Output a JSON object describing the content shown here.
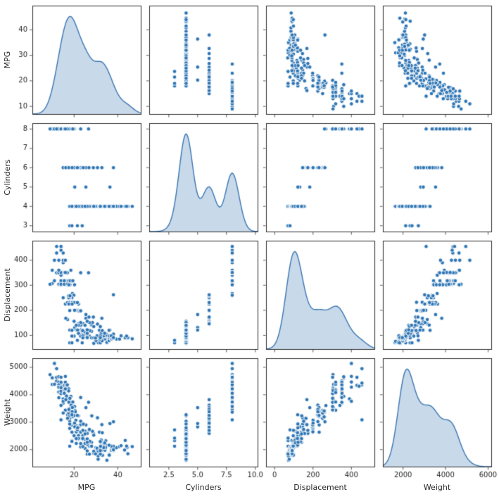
{
  "colors": {
    "bg": "#ffffff",
    "dot": "#2f76b5",
    "dot_edge": "#ffffff",
    "kde_line": "#3a76b2",
    "kde_fill": "rgba(58,118,178,0.28)",
    "spine": "#2b2b2b",
    "text": "#262626"
  },
  "chart_data": {
    "type": "scatter",
    "subtype": "pairplot-matrix",
    "title": "",
    "diagonal": "kde",
    "grid": false,
    "legend": "none",
    "variables": [
      {
        "name": "MPG",
        "row_lim": [
          7,
          49.5
        ],
        "row_ticks": [
          10,
          20,
          30,
          40
        ],
        "col_lim": [
          0.9,
          50.5
        ],
        "col_ticks": [
          20,
          40
        ],
        "col_tick_labels": [
          "20",
          "40"
        ]
      },
      {
        "name": "Cylinders",
        "row_lim": [
          2.7,
          8.3
        ],
        "row_ticks": [
          3,
          4,
          5,
          6,
          7,
          8
        ],
        "col_lim": [
          0.8,
          10.2
        ],
        "col_ticks": [
          2.5,
          5.0,
          7.5,
          10.0
        ],
        "col_tick_labels": [
          "2.5",
          "5.0",
          "7.5",
          "10.0"
        ]
      },
      {
        "name": "Displacement",
        "row_lim": [
          45,
          478
        ],
        "row_ticks": [
          100,
          200,
          300,
          400
        ],
        "col_lim": [
          -45,
          520
        ],
        "col_ticks": [
          0,
          200,
          400
        ],
        "col_tick_labels": [
          "0",
          "200",
          "400"
        ]
      },
      {
        "name": "Weight",
        "row_lim": [
          1380,
          5330
        ],
        "row_ticks": [
          2000,
          3000,
          4000,
          5000
        ],
        "col_lim": [
          1050,
          6150
        ],
        "col_ticks": [
          2000,
          4000,
          6000
        ],
        "col_tick_labels": [
          "2000",
          "4000",
          "6000"
        ]
      }
    ],
    "point_fields": [
      "MPG",
      "Cylinders",
      "Displacement",
      "Weight"
    ],
    "points": [
      [
        18,
        8,
        307,
        3504
      ],
      [
        15,
        8,
        350,
        3693
      ],
      [
        18,
        8,
        318,
        3436
      ],
      [
        16,
        8,
        304,
        3433
      ],
      [
        17,
        8,
        302,
        3449
      ],
      [
        15,
        8,
        429,
        4341
      ],
      [
        14,
        8,
        454,
        4354
      ],
      [
        14,
        8,
        440,
        4312
      ],
      [
        14,
        8,
        455,
        4425
      ],
      [
        15,
        8,
        390,
        3850
      ],
      [
        14,
        8,
        340,
        3609
      ],
      [
        15,
        8,
        400,
        3761
      ],
      [
        14,
        8,
        455,
        3086
      ],
      [
        10,
        8,
        360,
        4615
      ],
      [
        10,
        8,
        307,
        4376
      ],
      [
        11,
        8,
        318,
        4382
      ],
      [
        9,
        8,
        304,
        4732
      ],
      [
        13,
        8,
        350,
        4100
      ],
      [
        12,
        8,
        350,
        4499
      ],
      [
        13,
        8,
        400,
        4464
      ],
      [
        13,
        8,
        351,
        4363
      ],
      [
        14,
        8,
        318,
        4077
      ],
      [
        13,
        8,
        304,
        3892
      ],
      [
        14,
        8,
        302,
        4042
      ],
      [
        15,
        8,
        318,
        4096
      ],
      [
        12,
        8,
        429,
        4633
      ],
      [
        13,
        8,
        400,
        4278
      ],
      [
        13,
        8,
        350,
        4274
      ],
      [
        14,
        8,
        351,
        4129
      ],
      [
        16,
        8,
        400,
        4668
      ],
      [
        13,
        8,
        360,
        4654
      ],
      [
        14,
        8,
        318,
        4457
      ],
      [
        14,
        8,
        302,
        4638
      ],
      [
        14,
        8,
        304,
        4257
      ],
      [
        17.5,
        8,
        305,
        4215
      ],
      [
        16,
        8,
        318,
        4190
      ],
      [
        15.5,
        8,
        304,
        4154
      ],
      [
        15.5,
        8,
        350,
        4165
      ],
      [
        16,
        8,
        350,
        4456
      ],
      [
        16.5,
        8,
        351,
        4335
      ],
      [
        17.5,
        8,
        318,
        4140
      ],
      [
        17,
        8,
        305,
        3840
      ],
      [
        15.5,
        8,
        318,
        4080
      ],
      [
        16.5,
        8,
        350,
        3955
      ],
      [
        18.5,
        8,
        360,
        3940
      ],
      [
        26.6,
        8,
        350,
        3725
      ],
      [
        18.1,
        8,
        302,
        3870
      ],
      [
        19.2,
        8,
        267,
        3605
      ],
      [
        20.2,
        8,
        302,
        3570
      ],
      [
        19.9,
        8,
        260,
        3365
      ],
      [
        18.2,
        8,
        318,
        3735
      ],
      [
        17.6,
        8,
        302,
        3725
      ],
      [
        16.9,
        8,
        350,
        4360
      ],
      [
        15.5,
        8,
        351,
        4054
      ],
      [
        19.4,
        8,
        318,
        3735
      ],
      [
        23,
        8,
        350,
        3900
      ],
      [
        16,
        8,
        351,
        4215
      ],
      [
        11,
        8,
        400,
        5140
      ],
      [
        12,
        8,
        455,
        4951
      ],
      [
        18,
        6,
        199,
        2774
      ],
      [
        22,
        6,
        198,
        2833
      ],
      [
        21,
        6,
        200,
        2875
      ],
      [
        19,
        6,
        232,
        2634
      ],
      [
        16,
        6,
        225,
        3439
      ],
      [
        17,
        6,
        231,
        3264
      ],
      [
        21,
        6,
        199,
        2648
      ],
      [
        18,
        6,
        232,
        3288
      ],
      [
        19,
        6,
        250,
        3302
      ],
      [
        18,
        6,
        250,
        3139
      ],
      [
        23,
        6,
        198,
        2904
      ],
      [
        19,
        6,
        232,
        2901
      ],
      [
        18,
        6,
        225,
        3021
      ],
      [
        20,
        6,
        156,
        2945
      ],
      [
        15,
        6,
        250,
        3336
      ],
      [
        18,
        6,
        250,
        3432
      ],
      [
        18,
        6,
        258,
        3410
      ],
      [
        17.5,
        6,
        250,
        3329
      ],
      [
        22,
        6,
        225,
        3233
      ],
      [
        19,
        6,
        225,
        3264
      ],
      [
        20.5,
        6,
        231,
        3425
      ],
      [
        17.5,
        6,
        258,
        3193
      ],
      [
        20.2,
        6,
        232,
        3265
      ],
      [
        19.4,
        6,
        232,
        3210
      ],
      [
        20.6,
        6,
        231,
        3380
      ],
      [
        20.8,
        6,
        200,
        3070
      ],
      [
        18.6,
        6,
        225,
        3620
      ],
      [
        18.1,
        6,
        258,
        3410
      ],
      [
        19.2,
        6,
        231,
        3535
      ],
      [
        30.7,
        6,
        145,
        3160
      ],
      [
        25.4,
        6,
        168,
        2900
      ],
      [
        24.2,
        6,
        146,
        2930
      ],
      [
        38,
        6,
        262,
        3015
      ],
      [
        17,
        6,
        163,
        3140
      ],
      [
        16.2,
        6,
        168,
        3820
      ],
      [
        32.7,
        6,
        168,
        2910
      ],
      [
        22,
        6,
        146,
        2815
      ],
      [
        28.8,
        6,
        173,
        2595
      ],
      [
        26.8,
        6,
        173,
        2700
      ],
      [
        20.2,
        6,
        200,
        2965
      ],
      [
        17.6,
        6,
        225,
        3465
      ],
      [
        20.2,
        6,
        231,
        3245
      ],
      [
        19.1,
        6,
        225,
        3381
      ],
      [
        21.5,
        6,
        231,
        3245
      ],
      [
        18,
        3,
        70,
        2124
      ],
      [
        19,
        3,
        70,
        2330
      ],
      [
        23.7,
        3,
        70,
        2420
      ],
      [
        21.5,
        3,
        80,
        2720
      ],
      [
        20.3,
        5,
        131,
        2830
      ],
      [
        25.4,
        5,
        183,
        3530
      ],
      [
        36.4,
        5,
        121,
        2950
      ],
      [
        24,
        4,
        113,
        2372
      ],
      [
        27,
        4,
        97,
        2130
      ],
      [
        26,
        4,
        97,
        1835
      ],
      [
        25,
        4,
        110,
        2672
      ],
      [
        24,
        4,
        107,
        2430
      ],
      [
        25,
        4,
        104,
        2375
      ],
      [
        26,
        4,
        121,
        2234
      ],
      [
        28,
        4,
        140,
        2264
      ],
      [
        25,
        4,
        98,
        2046
      ],
      [
        27,
        4,
        97,
        1834
      ],
      [
        35,
        4,
        72,
        1613
      ],
      [
        31,
        4,
        76,
        1649
      ],
      [
        36,
        4,
        79,
        1825
      ],
      [
        33,
        4,
        91,
        1795
      ],
      [
        32,
        4,
        83,
        2003
      ],
      [
        28,
        4,
        90,
        2125
      ],
      [
        31,
        4,
        79,
        1950
      ],
      [
        29,
        4,
        68,
        1867
      ],
      [
        24,
        4,
        116,
        2158
      ],
      [
        20,
        4,
        97,
        2506
      ],
      [
        19,
        4,
        97,
        2300
      ],
      [
        23,
        4,
        97,
        2100
      ],
      [
        23,
        4,
        122,
        2220
      ],
      [
        22,
        4,
        121,
        2511
      ],
      [
        28,
        4,
        116,
        2123
      ],
      [
        23,
        4,
        140,
        2639
      ],
      [
        21,
        4,
        122,
        2226
      ],
      [
        24,
        4,
        121,
        2511
      ],
      [
        26,
        4,
        96,
        2189
      ],
      [
        25,
        4,
        113,
        2228
      ],
      [
        24,
        4,
        98,
        2702
      ],
      [
        22,
        4,
        108,
        2379
      ],
      [
        26,
        4,
        108,
        2391
      ],
      [
        31,
        4,
        71,
        1773
      ],
      [
        32,
        4,
        70,
        1836
      ],
      [
        30,
        4,
        79,
        2074
      ],
      [
        29,
        4,
        90,
        1937
      ],
      [
        24,
        4,
        90,
        2108
      ],
      [
        26,
        4,
        91,
        1955
      ],
      [
        33,
        4,
        91,
        1985
      ],
      [
        34.1,
        4,
        86,
        1975
      ],
      [
        30.5,
        4,
        98,
        2051
      ],
      [
        32.8,
        4,
        78,
        1985
      ],
      [
        39.4,
        4,
        85,
        2070
      ],
      [
        36.1,
        4,
        91,
        1800
      ],
      [
        43.1,
        4,
        90,
        1985
      ],
      [
        36.1,
        4,
        98,
        1800
      ],
      [
        34.3,
        4,
        97,
        2188
      ],
      [
        29.8,
        4,
        89,
        1845
      ],
      [
        37,
        4,
        85,
        1975
      ],
      [
        32.2,
        4,
        108,
        2265
      ],
      [
        46.6,
        4,
        86,
        2110
      ],
      [
        40.8,
        4,
        85,
        2110
      ],
      [
        44.3,
        4,
        90,
        2085
      ],
      [
        43.4,
        4,
        90,
        2335
      ],
      [
        33.8,
        4,
        97,
        2190
      ],
      [
        32.4,
        4,
        107,
        2290
      ],
      [
        31.6,
        4,
        120,
        2635
      ],
      [
        28.1,
        4,
        141,
        3230
      ],
      [
        34.7,
        4,
        105,
        2150
      ],
      [
        34.4,
        4,
        98,
        2075
      ],
      [
        33,
        4,
        105,
        2125
      ],
      [
        34.5,
        4,
        100,
        2320
      ],
      [
        33.7,
        4,
        107,
        2210
      ],
      [
        32.4,
        4,
        108,
        2350
      ],
      [
        32.9,
        4,
        119,
        2615
      ],
      [
        31.8,
        4,
        85,
        2020
      ],
      [
        37.3,
        4,
        91,
        2130
      ],
      [
        28.4,
        4,
        151,
        2670
      ],
      [
        27.2,
        4,
        119,
        2300
      ],
      [
        37.2,
        4,
        86,
        2019
      ],
      [
        44.6,
        4,
        91,
        1850
      ],
      [
        33.5,
        4,
        98,
        2075
      ],
      [
        41.5,
        4,
        98,
        2144
      ],
      [
        38.1,
        4,
        89,
        1968
      ],
      [
        32.1,
        4,
        98,
        2120
      ],
      [
        37.7,
        4,
        89,
        2050
      ],
      [
        38,
        4,
        105,
        2125
      ],
      [
        37,
        4,
        98,
        2125
      ],
      [
        38,
        4,
        91,
        1995
      ],
      [
        32,
        4,
        91,
        1965
      ],
      [
        44,
        4,
        97,
        2130
      ],
      [
        32,
        4,
        135,
        2295
      ],
      [
        27,
        4,
        151,
        2735
      ],
      [
        26,
        4,
        156,
        2585
      ],
      [
        23,
        4,
        151,
        3035
      ],
      [
        29,
        4,
        135,
        2525
      ],
      [
        23.9,
        4,
        119,
        2405
      ],
      [
        34,
        4,
        108,
        2245
      ],
      [
        36,
        4,
        120,
        2160
      ],
      [
        26,
        4,
        122,
        2265
      ],
      [
        18,
        4,
        121,
        2933
      ],
      [
        19,
        4,
        120,
        3270
      ],
      [
        21.6,
        4,
        121,
        2795
      ],
      [
        25,
        4,
        140,
        2572
      ],
      [
        22,
        4,
        140,
        2408
      ],
      [
        21,
        4,
        140,
        2401
      ]
    ]
  }
}
